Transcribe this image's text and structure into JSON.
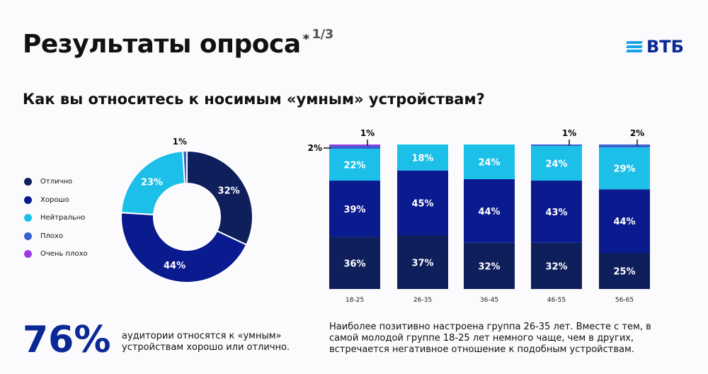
{
  "header": {
    "title": "Результаты опроса",
    "asterisk": "*",
    "page": "1/3",
    "question": "Как вы относитесь к носимым «умным» устройствам?",
    "logo": "ВТБ"
  },
  "colors": {
    "Отлично": "#0f1f5c",
    "Хорошо": "#0a1a8f",
    "Нейтрально": "#1bbfe8",
    "Плохо": "#3a5fcf",
    "Очень плохо": "#9b3be8"
  },
  "chart_data": [
    {
      "type": "pie",
      "donut": true,
      "legend_position": "left",
      "categories": [
        "Отлично",
        "Хорошо",
        "Нейтрально",
        "Плохо",
        "Очень плохо"
      ],
      "values": [
        32,
        44,
        23,
        1,
        0
      ],
      "labels": [
        "32%",
        "44%",
        "23%",
        "1%",
        ""
      ]
    },
    {
      "type": "bar",
      "stacked": true,
      "categories": [
        "18-25",
        "26-35",
        "36-45",
        "46-55",
        "56-65"
      ],
      "ylim": [
        0,
        100
      ],
      "series": [
        {
          "name": "Отлично",
          "values": [
            36,
            37,
            32,
            32,
            25
          ]
        },
        {
          "name": "Хорошо",
          "values": [
            39,
            45,
            44,
            43,
            44
          ]
        },
        {
          "name": "Нейтрально",
          "values": [
            22,
            18,
            24,
            24,
            29
          ]
        },
        {
          "name": "Плохо",
          "values": [
            2,
            0,
            0,
            1,
            2
          ]
        },
        {
          "name": "Очень плохо",
          "values": [
            1,
            0,
            0,
            0,
            0
          ]
        }
      ]
    }
  ],
  "summary": {
    "value": "76%",
    "text1": "аудитории относятся к «умным»",
    "text2": "устройствам хорошо или отлично."
  },
  "note": "Наиболее позитивно настроена группа 26-35 лет. Вместе с тем, в самой молодой группе 18-25 лет немного чаще, чем в других, встречается негативное отношение к подобным устройствам."
}
